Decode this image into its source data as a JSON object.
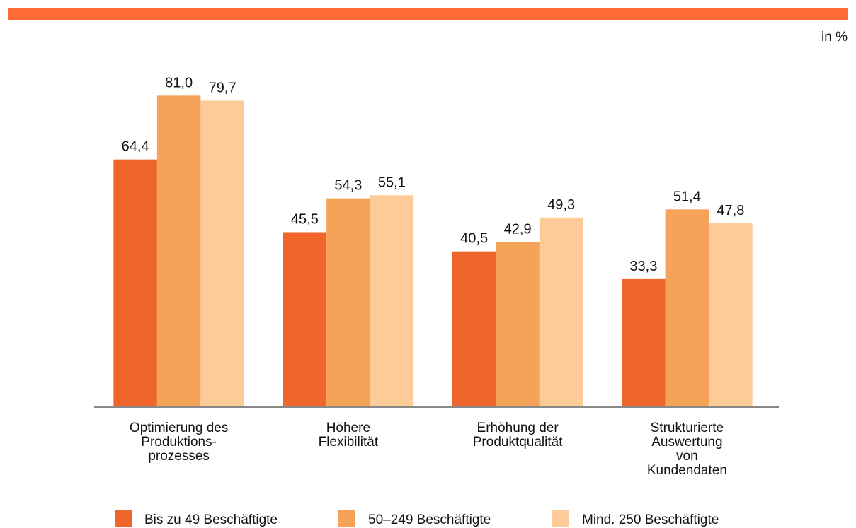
{
  "chart_data": {
    "type": "bar",
    "unit_label": "in %",
    "categories": [
      "Optimierung des\nProduktions-\nprozesses",
      "Höhere\nFlexibilität",
      "Erhöhung der\nProduktqualität",
      "Strukturierte\nAuswertung\nvon\nKundendaten"
    ],
    "series": [
      {
        "name": "Bis zu 49 Beschäftigte",
        "color": "#f0652a",
        "values": [
          64.4,
          45.5,
          40.5,
          33.3
        ],
        "value_labels": [
          "64,4",
          "45,5",
          "40,5",
          "33,3"
        ]
      },
      {
        "name": "50–249 Beschäftigte",
        "color": "#f4a358",
        "values": [
          81.0,
          54.3,
          42.9,
          51.4
        ],
        "value_labels": [
          "81,0",
          "54,3",
          "42,9",
          "51,4"
        ]
      },
      {
        "name": "Mind. 250 Beschäftigte",
        "color": "#fdcb97",
        "values": [
          79.7,
          55.1,
          49.3,
          47.8
        ],
        "value_labels": [
          "79,7",
          "55,1",
          "49,3",
          "47,8"
        ]
      }
    ],
    "ylim": [
      0,
      100
    ]
  }
}
